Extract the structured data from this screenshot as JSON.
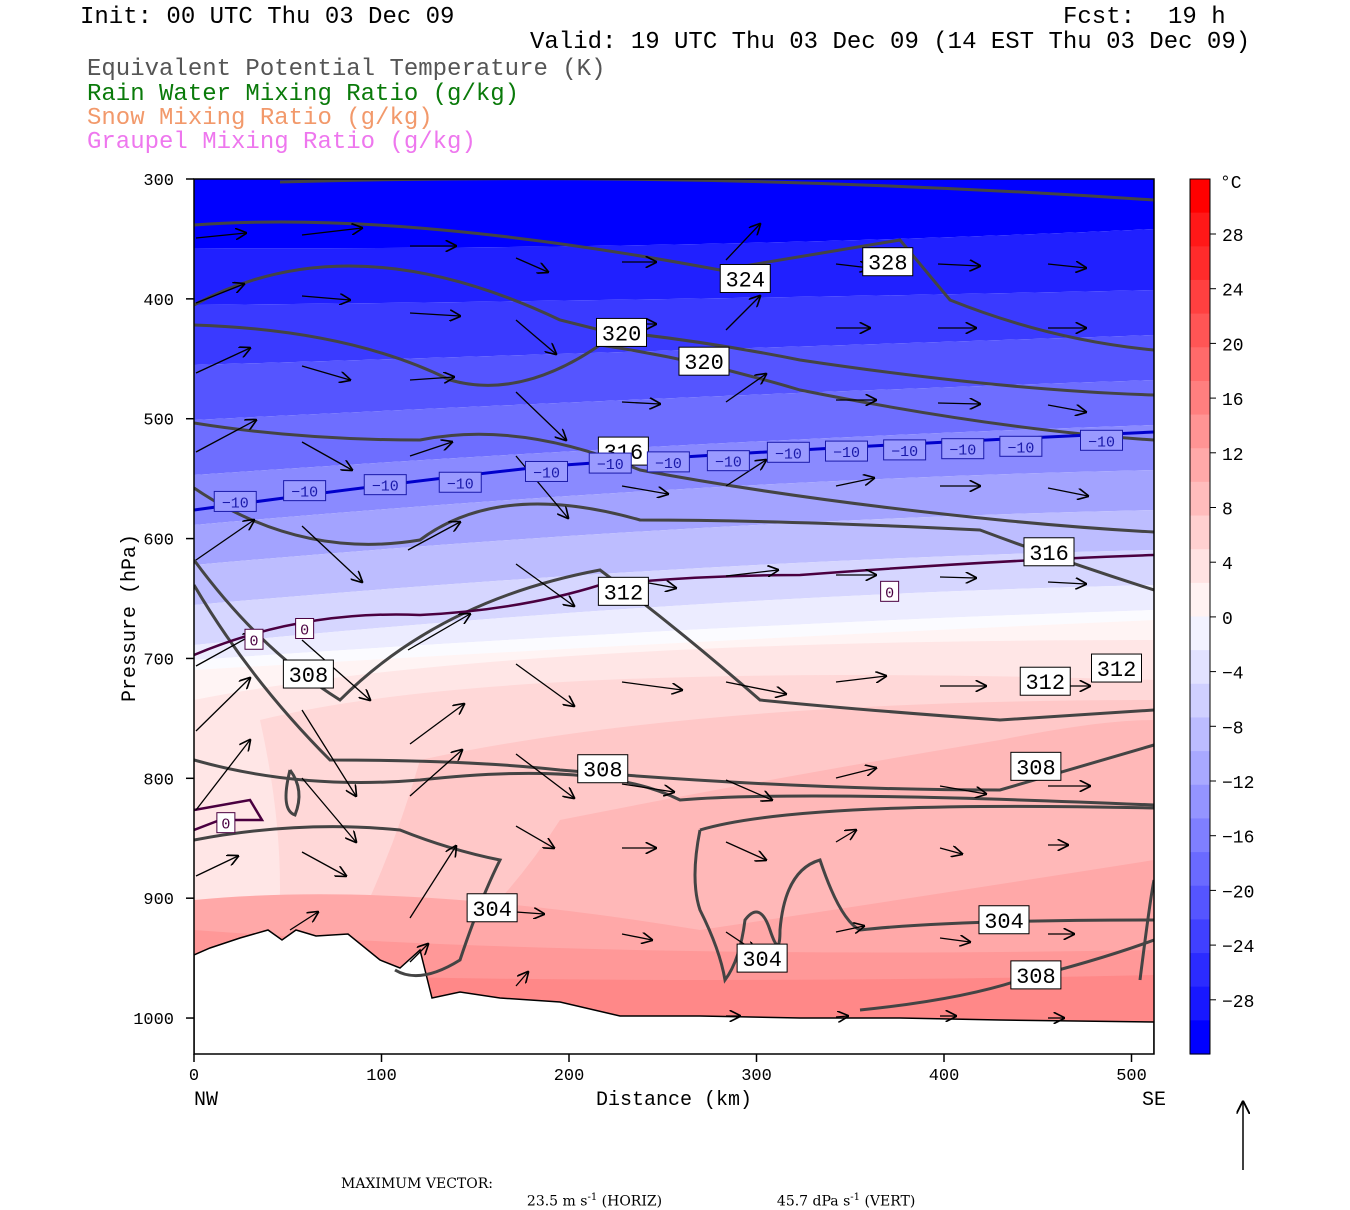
{
  "header": {
    "init": "Init: 00 UTC Thu 03 Dec 09",
    "fcst_label": "Fcst:",
    "fcst_value": "19 h",
    "valid": "Valid: 19 UTC Thu 03 Dec 09 (14 EST Thu 03 Dec 09)"
  },
  "legend": [
    {
      "label": "Equivalent Potential Temperature (K)",
      "color": "#555555"
    },
    {
      "label": "Rain Water Mixing Ratio (g/kg)",
      "color": "#0a7a0a"
    },
    {
      "label": "Snow Mixing Ratio (g/kg)",
      "color": "#f2996b"
    },
    {
      "label": "Graupel Mixing Ratio (g/kg)",
      "color": "#ee77ee"
    }
  ],
  "chart_data": {
    "type": "cross-section",
    "xlabel": "Distance (km)",
    "ylabel": "Pressure (hPa)",
    "xlim": [
      0,
      512
    ],
    "ylim": [
      1030,
      300
    ],
    "xticks": [
      "0",
      "100",
      "200",
      "300",
      "400",
      "500"
    ],
    "yticks": [
      "300",
      "400",
      "500",
      "600",
      "700",
      "800",
      "900",
      "1000"
    ],
    "x_end_labels": {
      "left": "NW",
      "right": "SE"
    },
    "colorbar": {
      "unit": "°C",
      "ticks": [
        "28",
        "24",
        "20",
        "16",
        "12",
        "8",
        "4",
        "0",
        "−4",
        "−8",
        "−12",
        "−16",
        "−20",
        "−24",
        "−28"
      ],
      "colors": [
        "#0000ff",
        "#1818ff",
        "#2b2bff",
        "#4040ff",
        "#5555ff",
        "#6a6aff",
        "#7f7fff",
        "#9494ff",
        "#a9a9ff",
        "#bcbcff",
        "#d0d0ff",
        "#e2e2ff",
        "#f2f2ff",
        "#fff2f2",
        "#ffe2e2",
        "#ffd0d0",
        "#ffbcbc",
        "#ffa9a9",
        "#ff9494",
        "#ff7f7f",
        "#ff6a6a",
        "#ff5555",
        "#ff4040",
        "#ff2b2b",
        "#ff1818",
        "#ff0000"
      ]
    },
    "theta_e_labels": [
      {
        "text": "328",
        "x": 370,
        "p": 369
      },
      {
        "text": "324",
        "x": 294,
        "p": 383
      },
      {
        "text": "320",
        "x": 228,
        "p": 428
      },
      {
        "text": "320",
        "x": 272,
        "p": 452
      },
      {
        "text": "316",
        "x": 229,
        "p": 527
      },
      {
        "text": "316",
        "x": 456,
        "p": 611
      },
      {
        "text": "312",
        "x": 229,
        "p": 644
      },
      {
        "text": "312",
        "x": 454,
        "p": 719
      },
      {
        "text": "312",
        "x": 492,
        "p": 708
      },
      {
        "text": "308",
        "x": 61,
        "p": 713
      },
      {
        "text": "308",
        "x": 218,
        "p": 792
      },
      {
        "text": "308",
        "x": 449,
        "p": 790
      },
      {
        "text": "308",
        "x": 449,
        "p": 964
      },
      {
        "text": "304",
        "x": 159,
        "p": 908
      },
      {
        "text": "304",
        "x": 303,
        "p": 950
      },
      {
        "text": "304",
        "x": 432,
        "p": 918
      }
    ],
    "isotherm_labels": [
      {
        "text": "−10",
        "x": 22,
        "p": 569
      },
      {
        "text": "−10",
        "x": 59,
        "p": 560
      },
      {
        "text": "−10",
        "x": 102,
        "p": 555
      },
      {
        "text": "−10",
        "x": 142,
        "p": 553
      },
      {
        "text": "−10",
        "x": 188,
        "p": 544
      },
      {
        "text": "−10",
        "x": 222,
        "p": 537
      },
      {
        "text": "−10",
        "x": 253,
        "p": 536
      },
      {
        "text": "−10",
        "x": 285,
        "p": 535
      },
      {
        "text": "−10",
        "x": 317,
        "p": 528
      },
      {
        "text": "−10",
        "x": 348,
        "p": 527
      },
      {
        "text": "−10",
        "x": 379,
        "p": 526
      },
      {
        "text": "−10",
        "x": 410,
        "p": 525
      },
      {
        "text": "−10",
        "x": 441,
        "p": 523
      },
      {
        "text": "−10",
        "x": 484,
        "p": 518
      },
      {
        "text": "0",
        "x": 32,
        "p": 684
      },
      {
        "text": "0",
        "x": 59,
        "p": 675
      },
      {
        "text": "0",
        "x": 17,
        "p": 837
      },
      {
        "text": "0",
        "x": 371,
        "p": 644
      }
    ]
  },
  "max_vector": {
    "label": "MAXIMUM VECTOR:",
    "horiz_value": "23.5 m s",
    "horiz_exp": "-1",
    "horiz_unit": "(HORIZ)",
    "vert_value": "45.7 dPa s",
    "vert_exp": "-1",
    "vert_unit": "(VERT)"
  }
}
